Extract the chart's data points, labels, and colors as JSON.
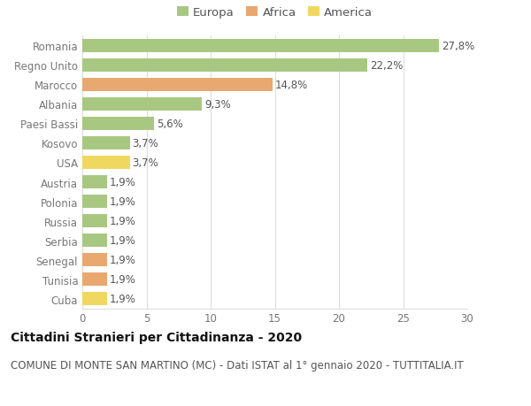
{
  "categories": [
    "Romania",
    "Regno Unito",
    "Marocco",
    "Albania",
    "Paesi Bassi",
    "Kosovo",
    "USA",
    "Austria",
    "Polonia",
    "Russia",
    "Serbia",
    "Senegal",
    "Tunisia",
    "Cuba"
  ],
  "values": [
    27.8,
    22.2,
    14.8,
    9.3,
    5.6,
    3.7,
    3.7,
    1.9,
    1.9,
    1.9,
    1.9,
    1.9,
    1.9,
    1.9
  ],
  "labels": [
    "27,8%",
    "22,2%",
    "14,8%",
    "9,3%",
    "5,6%",
    "3,7%",
    "3,7%",
    "1,9%",
    "1,9%",
    "1,9%",
    "1,9%",
    "1,9%",
    "1,9%",
    "1,9%"
  ],
  "continents": [
    "Europa",
    "Europa",
    "Africa",
    "Europa",
    "Europa",
    "Europa",
    "America",
    "Europa",
    "Europa",
    "Europa",
    "Europa",
    "Africa",
    "Africa",
    "America"
  ],
  "colors": {
    "Europa": "#a8c882",
    "Africa": "#e8a870",
    "America": "#f0d860"
  },
  "title": "Cittadini Stranieri per Cittadinanza - 2020",
  "subtitle": "COMUNE DI MONTE SAN MARTINO (MC) - Dati ISTAT al 1° gennaio 2020 - TUTTITALIA.IT",
  "xlim": [
    0,
    30
  ],
  "xticks": [
    0,
    5,
    10,
    15,
    20,
    25,
    30
  ],
  "background_color": "#ffffff",
  "grid_color": "#dddddd",
  "bar_height": 0.65,
  "title_fontsize": 10,
  "subtitle_fontsize": 8.5,
  "label_fontsize": 8.5,
  "tick_fontsize": 8.5,
  "legend_fontsize": 9.5
}
